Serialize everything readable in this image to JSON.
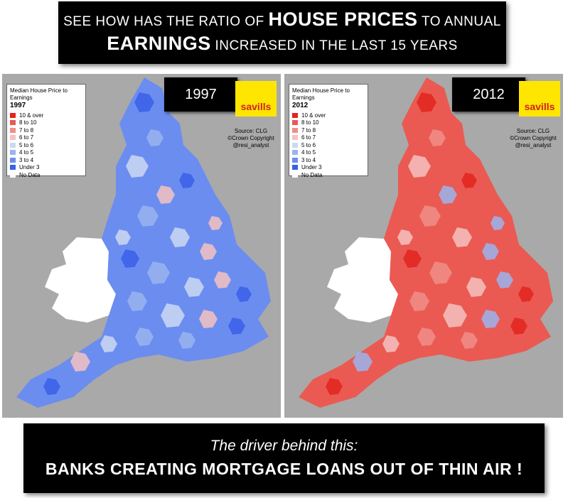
{
  "header": {
    "line1_pre": "See how has the ratio of",
    "line1_bold": "HOUSE PRICES",
    "line1_post": "to annual",
    "line2_bold": "EARNINGS",
    "line2_post": "increased in the last 15 years"
  },
  "legend_title": "Median House Price to Earnings",
  "legend_items": [
    "10 & over",
    "8 to 10",
    "7 to  8",
    "6 to  7",
    "5 to  6",
    "4 to  5",
    "3 to  4",
    "Under 3",
    "No Data"
  ],
  "legend_colors": [
    "#e3251f",
    "#ea5a52",
    "#f08e88",
    "#f5c2c0",
    "#cdd8f2",
    "#9ab4ee",
    "#6b8df0",
    "#3a5fe8",
    "#ffffff"
  ],
  "brand": "savills",
  "source_lines": [
    "Source: CLG",
    "©Crown Copyright",
    "@resi_analyst"
  ],
  "maps": [
    {
      "year": "1997",
      "base_color": "#6b8df0",
      "accent_colors": [
        "#3a5fe8",
        "#9ab4ee",
        "#cdd8f2",
        "#f5c2c0"
      ]
    },
    {
      "year": "2012",
      "base_color": "#ea5a52",
      "accent_colors": [
        "#e3251f",
        "#f08e88",
        "#f5c2c0",
        "#9ab4ee"
      ]
    }
  ],
  "footer": {
    "line1": "The driver behind this:",
    "line2": "BANKS CREATING MORTGAGE LOANS OUT OF THIN AIR !"
  }
}
